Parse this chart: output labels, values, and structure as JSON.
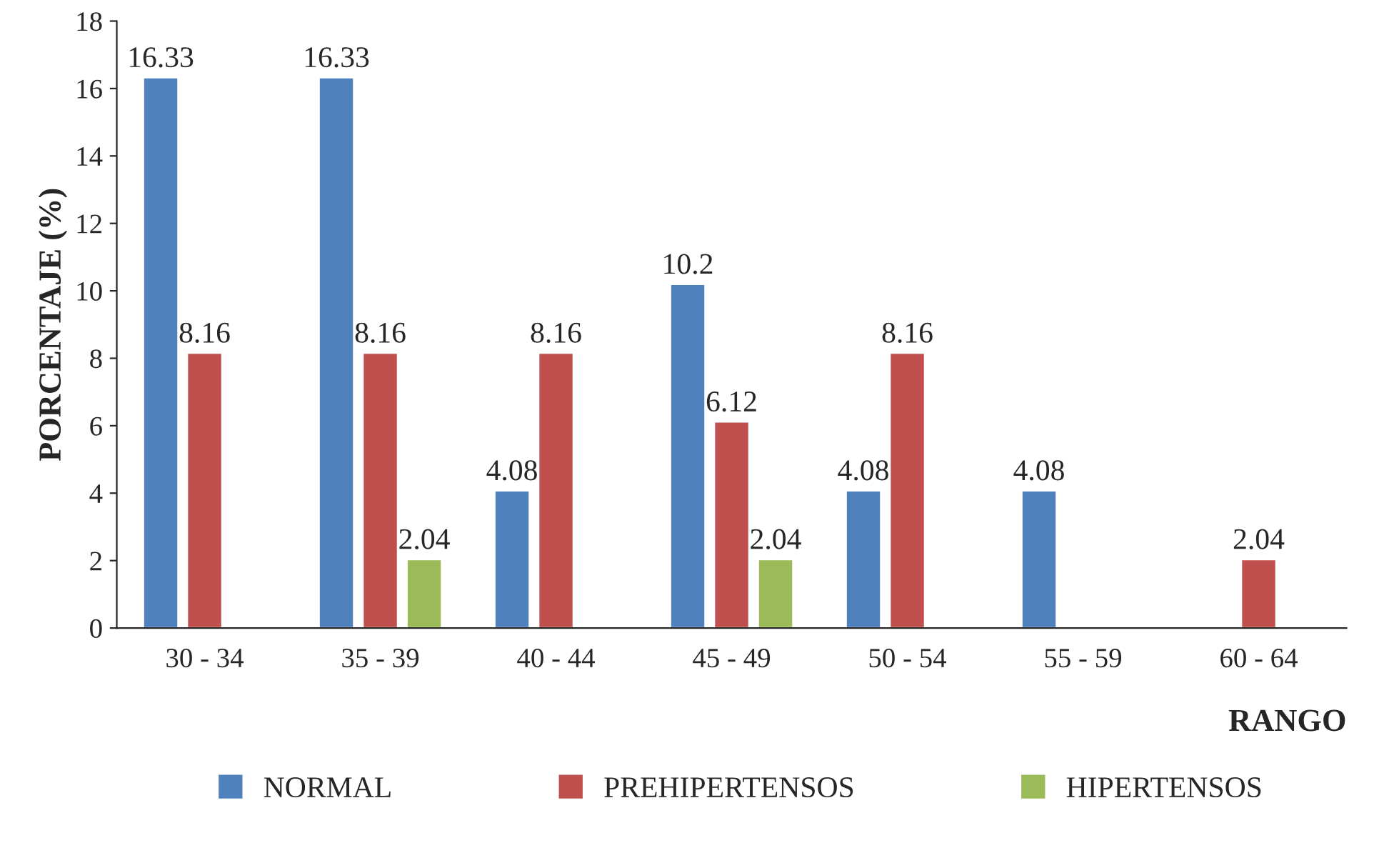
{
  "chart_data": {
    "type": "bar",
    "xlabel": "RANGO",
    "ylabel": "PORCENTAJE (%)",
    "categories": [
      "30 - 34",
      "35 - 39",
      "40 - 44",
      "45 - 49",
      "50 - 54",
      "55 - 59",
      "60 - 64"
    ],
    "series": [
      {
        "name": "NORMAL",
        "color": "#4f81bd",
        "values": [
          16.33,
          16.33,
          4.08,
          10.2,
          4.08,
          4.08,
          null
        ]
      },
      {
        "name": "PREHIPERTENSOS",
        "color": "#c0504d",
        "values": [
          8.16,
          8.16,
          8.16,
          6.12,
          8.16,
          null,
          2.04
        ]
      },
      {
        "name": "HIPERTENSOS",
        "color": "#9bbb59",
        "values": [
          null,
          2.04,
          null,
          2.04,
          null,
          null,
          null
        ]
      }
    ],
    "ylim": [
      0,
      18
    ],
    "yticks": [
      0,
      2,
      4,
      6,
      8,
      10,
      12,
      14,
      16,
      18
    ],
    "data_labels": true,
    "legend": "bottom",
    "grid": false
  }
}
